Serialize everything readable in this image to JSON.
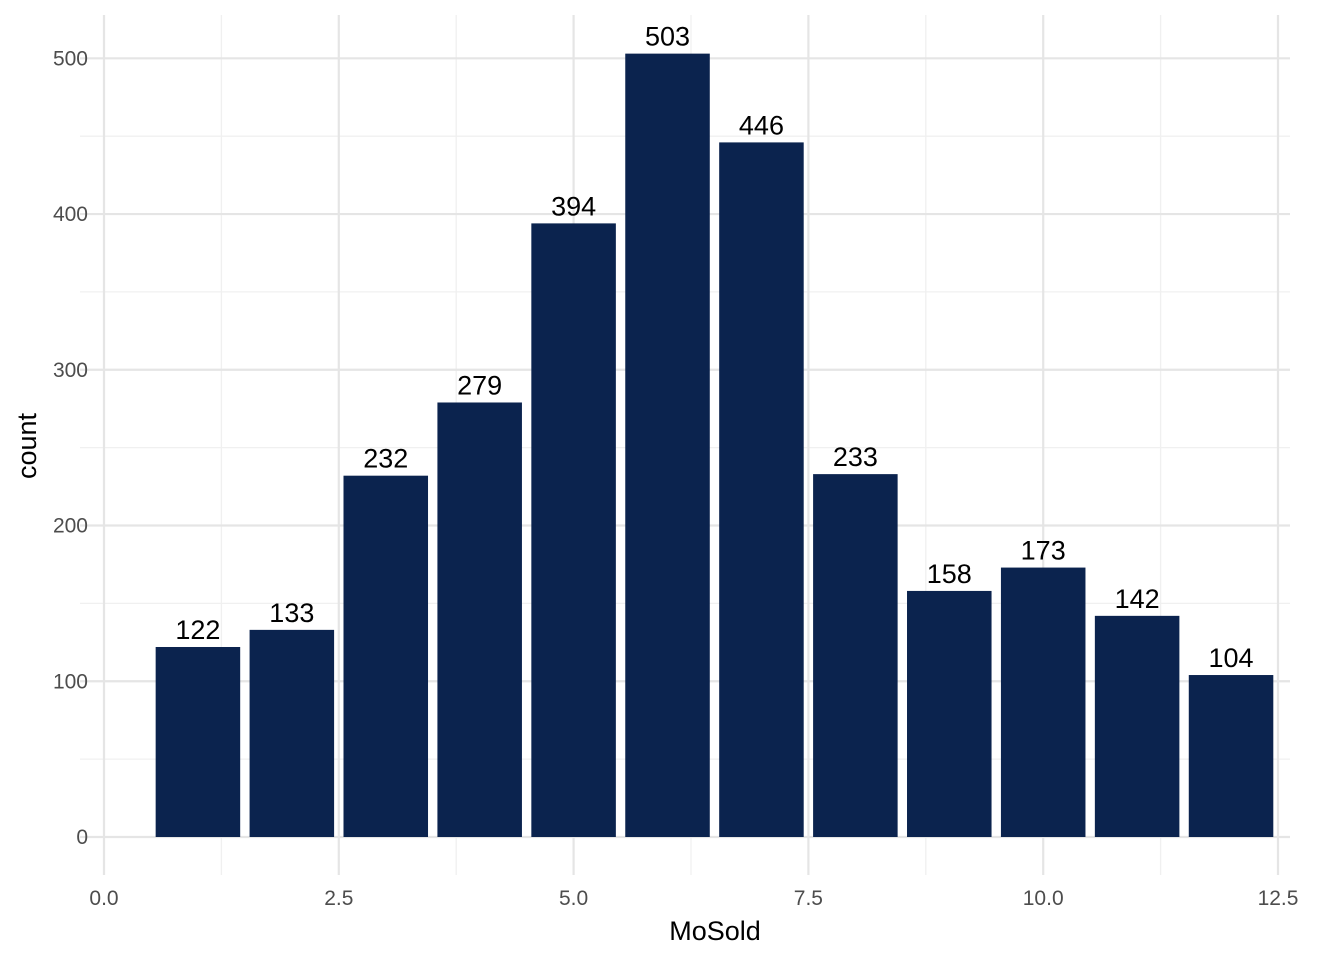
{
  "chart_data": {
    "type": "bar",
    "x": [
      1,
      2,
      3,
      4,
      5,
      6,
      7,
      8,
      9,
      10,
      11,
      12
    ],
    "values": [
      122,
      133,
      232,
      279,
      394,
      503,
      446,
      233,
      158,
      173,
      142,
      104
    ],
    "data_labels": [
      "122",
      "133",
      "232",
      "279",
      "394",
      "503",
      "446",
      "233",
      "158",
      "173",
      "142",
      "104"
    ],
    "xlabel": "MoSold",
    "ylabel": "count",
    "xlim": [
      0,
      12.5
    ],
    "ylim": [
      0,
      503
    ],
    "x_ticks": [
      0,
      2.5,
      5,
      7.5,
      10,
      12.5
    ],
    "x_tick_labels": [
      "0.0",
      "2.5",
      "5.0",
      "7.5",
      "10.0",
      "12.5"
    ],
    "y_ticks": [
      0,
      100,
      200,
      300,
      400,
      500
    ],
    "y_tick_labels": [
      "0",
      "100",
      "200",
      "300",
      "400",
      "500"
    ],
    "grid": true,
    "bar_color": "#0b234e",
    "grid_color": "#e5e5e5"
  }
}
